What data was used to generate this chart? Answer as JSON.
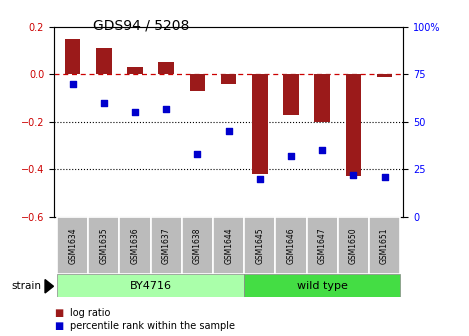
{
  "title": "GDS94 / 5208",
  "samples": [
    "GSM1634",
    "GSM1635",
    "GSM1636",
    "GSM1637",
    "GSM1638",
    "GSM1644",
    "GSM1645",
    "GSM1646",
    "GSM1647",
    "GSM1650",
    "GSM1651"
  ],
  "log_ratio": [
    0.15,
    0.11,
    0.03,
    0.05,
    -0.07,
    -0.04,
    -0.42,
    -0.17,
    -0.2,
    -0.43,
    -0.01
  ],
  "percentile": [
    70,
    60,
    55,
    57,
    33,
    45,
    20,
    32,
    35,
    22,
    21
  ],
  "bar_color": "#9B1A1A",
  "dot_color": "#0000CD",
  "ylim_left": [
    -0.6,
    0.2
  ],
  "ylim_right": [
    0,
    100
  ],
  "yticks_left": [
    -0.6,
    -0.4,
    -0.2,
    0.0,
    0.2
  ],
  "yticks_right": [
    0,
    25,
    50,
    75,
    100
  ],
  "ytick_labels_right": [
    "0",
    "25",
    "50",
    "75",
    "100%"
  ],
  "hline_dotted": [
    -0.2,
    -0.4
  ],
  "strain_groups": [
    {
      "label": "BY4716",
      "start": 0,
      "end": 5,
      "color": "#AAFFAA"
    },
    {
      "label": "wild type",
      "start": 6,
      "end": 10,
      "color": "#44DD44"
    }
  ],
  "strain_label": "strain",
  "legend_items": [
    {
      "label": "log ratio",
      "color": "#9B1A1A"
    },
    {
      "label": "percentile rank within the sample",
      "color": "#0000CD"
    }
  ],
  "bg_color": "#FFFFFF",
  "tick_label_area_color": "#BBBBBB",
  "title_fontsize": 10,
  "axis_fontsize": 7
}
